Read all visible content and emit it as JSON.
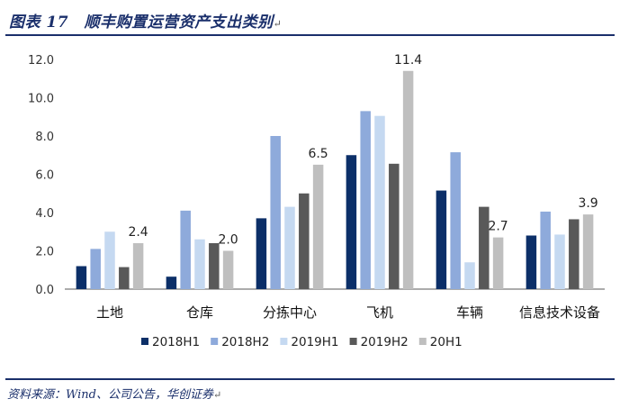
{
  "title": "图表 17　顺丰购置运营资产支出类别",
  "paragraph_mark": "↵",
  "source": "资料来源：Wind、公司公告，华创证券",
  "colors": {
    "title": "#1a2f6b",
    "axis": "#595959",
    "series": [
      "#0c2f68",
      "#8eaadb",
      "#c5d9f1",
      "#595959",
      "#bfbfbf"
    ]
  },
  "chart_data": {
    "type": "bar",
    "categories": [
      "土地",
      "仓库",
      "分拣中心",
      "飞机",
      "车辆",
      "信息技术设备"
    ],
    "series": [
      {
        "name": "2018H1",
        "values": [
          1.2,
          0.65,
          3.7,
          7.0,
          5.15,
          2.8
        ]
      },
      {
        "name": "2018H2",
        "values": [
          2.1,
          4.1,
          8.0,
          9.3,
          7.15,
          4.05
        ]
      },
      {
        "name": "2019H1",
        "values": [
          3.0,
          2.6,
          4.3,
          9.05,
          1.4,
          2.85
        ]
      },
      {
        "name": "2019H2",
        "values": [
          1.15,
          2.4,
          5.0,
          6.55,
          4.3,
          3.65
        ]
      },
      {
        "name": "20H1",
        "values": [
          2.4,
          2.0,
          6.5,
          11.4,
          2.7,
          3.9
        ]
      }
    ],
    "data_labels": [
      {
        "series": "20H1",
        "category": "土地",
        "text": "2.4"
      },
      {
        "series": "20H1",
        "category": "仓库",
        "text": "2.0"
      },
      {
        "series": "20H1",
        "category": "分拣中心",
        "text": "6.5"
      },
      {
        "series": "20H1",
        "category": "飞机",
        "text": "11.4"
      },
      {
        "series": "20H1",
        "category": "车辆",
        "text": "2.7"
      },
      {
        "series": "20H1",
        "category": "信息技术设备",
        "text": "3.9"
      }
    ],
    "yticks": [
      "0.0",
      "2.0",
      "4.0",
      "6.0",
      "8.0",
      "10.0",
      "12.0"
    ],
    "ylim": [
      0,
      12
    ],
    "xlabel": "",
    "ylabel": "",
    "grid": false,
    "legend_position": "bottom"
  }
}
